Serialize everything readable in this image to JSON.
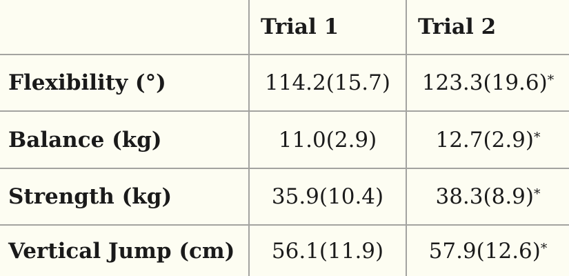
{
  "table": {
    "header": [
      "Trial 1",
      "Trial 2"
    ],
    "rows": [
      {
        "label": "Flexibility (°)",
        "values": [
          {
            "text": "114.2(15.7)"
          },
          {
            "text": "123.3(19.6)",
            "note": "*"
          }
        ]
      },
      {
        "label": "Balance (kg)",
        "values": [
          {
            "text": "11.0(2.9)"
          },
          {
            "text": "12.7(2.9)",
            "note": "*"
          }
        ]
      },
      {
        "label": "Strength (kg)",
        "values": [
          {
            "text": "35.9(10.4)"
          },
          {
            "text": "38.3(8.9)",
            "note": "*"
          }
        ]
      },
      {
        "label": "Vertical Jump (cm)",
        "values": [
          {
            "text": "56.1(11.9)"
          },
          {
            "text": "57.9(12.6)",
            "note": "*"
          }
        ]
      }
    ]
  }
}
